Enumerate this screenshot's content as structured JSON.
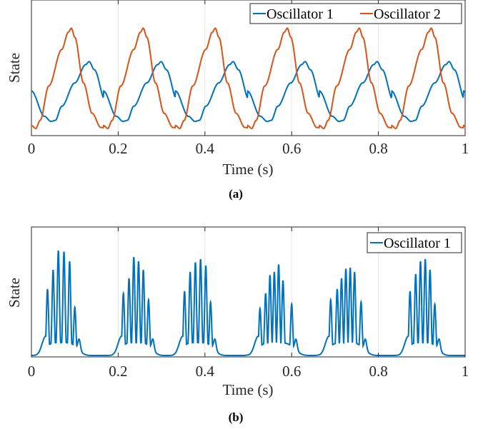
{
  "chart_data": [
    {
      "type": "line",
      "panel_label": "(a)",
      "xlabel": "Time (s)",
      "ylabel": "State",
      "xlim": [
        0,
        1
      ],
      "xticks": [
        "0",
        "0.2",
        "0.4",
        "0.6",
        "0.8",
        "1"
      ],
      "grid": "vertical",
      "legend_position": "top-right",
      "legend_layout": "horizontal",
      "series": [
        {
          "name": "Oscillator 1",
          "color": "#0072BD",
          "period": 0.166,
          "points": [
            [
              0,
              0.37
            ],
            [
              0.03,
              0.12
            ],
            [
              0.045,
              0.07
            ],
            [
              0.055,
              0.08
            ],
            [
              0.07,
              0.22
            ],
            [
              0.1,
              0.45
            ],
            [
              0.125,
              0.63
            ],
            [
              0.133,
              0.66
            ],
            [
              0.145,
              0.58
            ],
            [
              0.17,
              0.28
            ],
            [
              0.19,
              0.12
            ],
            [
              0.211,
              0.07
            ]
          ]
        },
        {
          "name": "Oscillator 2",
          "color": "#D95319",
          "period": 0.166,
          "points": [
            [
              0,
              0.03
            ],
            [
              0.01,
              0.0
            ],
            [
              0.02,
              0.08
            ],
            [
              0.04,
              0.42
            ],
            [
              0.07,
              0.78
            ],
            [
              0.085,
              0.95
            ],
            [
              0.092,
              0.99
            ],
            [
              0.1,
              0.9
            ],
            [
              0.12,
              0.45
            ],
            [
              0.14,
              0.15
            ],
            [
              0.16,
              0.01
            ],
            [
              0.176,
              0.0
            ]
          ]
        }
      ]
    },
    {
      "type": "line",
      "panel_label": "(b)",
      "xlabel": "Time (s)",
      "ylabel": "State",
      "xlim": [
        0,
        1
      ],
      "xticks": [
        "0",
        "0.2",
        "0.4",
        "0.6",
        "0.8",
        "1"
      ],
      "grid": "vertical",
      "legend_position": "top-right",
      "series": [
        {
          "name": "Oscillator 1",
          "color": "#0072BD",
          "bursts": [
            {
              "center": 0.075,
              "peak_times": [
                0.037,
                0.05,
                0.062,
                0.075,
                0.088,
                0.1
              ],
              "peak_values": [
                0.62,
                0.8,
                0.98,
                0.97,
                0.88,
                0.45
              ]
            },
            {
              "center": 0.258,
              "peak_times": [
                0.212,
                0.225,
                0.236,
                0.247,
                0.258,
                0.27
              ],
              "peak_values": [
                0.58,
                0.72,
                0.92,
                0.88,
                0.8,
                0.52
              ]
            },
            {
              "center": 0.393,
              "peak_times": [
                0.353,
                0.366,
                0.378,
                0.39,
                0.402,
                0.413
              ],
              "peak_values": [
                0.6,
                0.78,
                0.87,
                0.9,
                0.84,
                0.5
              ]
            },
            {
              "center": 0.57,
              "peak_times": [
                0.527,
                0.54,
                0.55,
                0.56,
                0.57,
                0.58,
                0.6
              ],
              "peak_values": [
                0.44,
                0.58,
                0.75,
                0.78,
                0.85,
                0.7,
                0.48
              ]
            },
            {
              "center": 0.73,
              "peak_times": [
                0.69,
                0.705,
                0.715,
                0.725,
                0.735,
                0.745,
                0.76
              ],
              "peak_values": [
                0.52,
                0.62,
                0.72,
                0.81,
                0.82,
                0.78,
                0.5
              ]
            },
            {
              "center": 0.91,
              "peak_times": [
                0.873,
                0.886,
                0.897,
                0.908,
                0.919,
                0.93
              ],
              "peak_values": [
                0.6,
                0.76,
                0.88,
                0.9,
                0.8,
                0.48
              ]
            }
          ]
        }
      ]
    }
  ]
}
